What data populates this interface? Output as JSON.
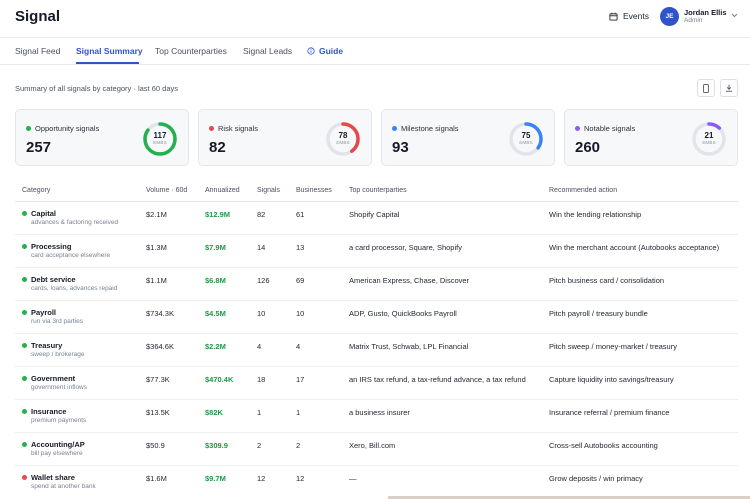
{
  "app": {
    "title": "Signal"
  },
  "header": {
    "events_label": "Events",
    "user": {
      "initials": "JE",
      "name": "Jordan Ellis",
      "role": "Admin"
    }
  },
  "tabs": [
    {
      "label": "Signal Feed",
      "active": false
    },
    {
      "label": "Signal Summary",
      "active": true
    },
    {
      "label": "Top Counterparties",
      "active": false
    },
    {
      "label": "Signal Leads",
      "active": false
    },
    {
      "label": "Guide",
      "active": false
    }
  ],
  "summary_text": "Summary of all signals by category · last 60 days",
  "cards": [
    {
      "label": "Opportunity signals",
      "value": "257",
      "ring_value": "117",
      "ring_unit": "SMBS",
      "ring_fraction": 0.85,
      "color": "#22b14c"
    },
    {
      "label": "Risk signals",
      "value": "82",
      "ring_value": "78",
      "ring_unit": "SMBS",
      "ring_fraction": 0.4,
      "color": "#e5484d"
    },
    {
      "label": "Milestone signals",
      "value": "93",
      "ring_value": "75",
      "ring_unit": "SMBS",
      "ring_fraction": 0.35,
      "color": "#3b82f6"
    },
    {
      "label": "Notable signals",
      "value": "260",
      "ring_value": "21",
      "ring_unit": "SMBS",
      "ring_fraction": 0.12,
      "color": "#8b5cf6"
    }
  ],
  "table": {
    "headers": {
      "category": "Category",
      "volume": "Volume · 60d",
      "annualized": "Annualized",
      "signals": "Signals",
      "businesses": "Businesses",
      "counterparties": "Top counterparties",
      "action": "Recommended action"
    },
    "rows": [
      {
        "name": "Capital",
        "sub": "advances & factoring received",
        "volume": "$2.1M",
        "annualized": "$12.9M",
        "signals": "82",
        "businesses": "61",
        "counterparties": "Shopify Capital",
        "action": "Win the lending relationship",
        "dot": "#22b14c"
      },
      {
        "name": "Processing",
        "sub": "card acceptance elsewhere",
        "volume": "$1.3M",
        "annualized": "$7.9M",
        "signals": "14",
        "businesses": "13",
        "counterparties": "a card processor, Square, Shopify",
        "action": "Win the merchant account (Autobooks acceptance)",
        "dot": "#22b14c"
      },
      {
        "name": "Debt service",
        "sub": "cards, loans, advances repaid",
        "volume": "$1.1M",
        "annualized": "$6.8M",
        "signals": "126",
        "businesses": "69",
        "counterparties": "American Express, Chase, Discover",
        "action": "Pitch business card / consolidation",
        "dot": "#22b14c"
      },
      {
        "name": "Payroll",
        "sub": "run via 3rd parties",
        "volume": "$734.3K",
        "annualized": "$4.5M",
        "signals": "10",
        "businesses": "10",
        "counterparties": "ADP, Gusto, QuickBooks Payroll",
        "action": "Pitch payroll / treasury bundle",
        "dot": "#22b14c"
      },
      {
        "name": "Treasury",
        "sub": "sweep / brokerage",
        "volume": "$364.6K",
        "annualized": "$2.2M",
        "signals": "4",
        "businesses": "4",
        "counterparties": "Matrix Trust, Schwab, LPL Financial",
        "action": "Pitch sweep / money-market / treasury",
        "dot": "#22b14c"
      },
      {
        "name": "Government",
        "sub": "government inflows",
        "volume": "$77.3K",
        "annualized": "$470.4K",
        "signals": "18",
        "businesses": "17",
        "counterparties": "an IRS tax refund, a tax-refund advance, a tax refund",
        "action": "Capture liquidity into savings/treasury",
        "dot": "#22b14c"
      },
      {
        "name": "Insurance",
        "sub": "premium payments",
        "volume": "$13.5K",
        "annualized": "$82K",
        "signals": "1",
        "businesses": "1",
        "counterparties": "a business insurer",
        "action": "Insurance referral / premium finance",
        "dot": "#22b14c"
      },
      {
        "name": "Accounting/AP",
        "sub": "bill pay elsewhere",
        "volume": "$50.9",
        "annualized": "$309.9",
        "signals": "2",
        "businesses": "2",
        "counterparties": "Xero, Bill.com",
        "action": "Cross-sell Autobooks accounting",
        "dot": "#22b14c"
      },
      {
        "name": "Wallet share",
        "sub": "spend at another bank",
        "volume": "$1.6M",
        "annualized": "$9.7M",
        "signals": "12",
        "businesses": "12",
        "counterparties": "—",
        "action": "Grow deposits / win primacy",
        "dot": "#e5484d"
      }
    ]
  }
}
